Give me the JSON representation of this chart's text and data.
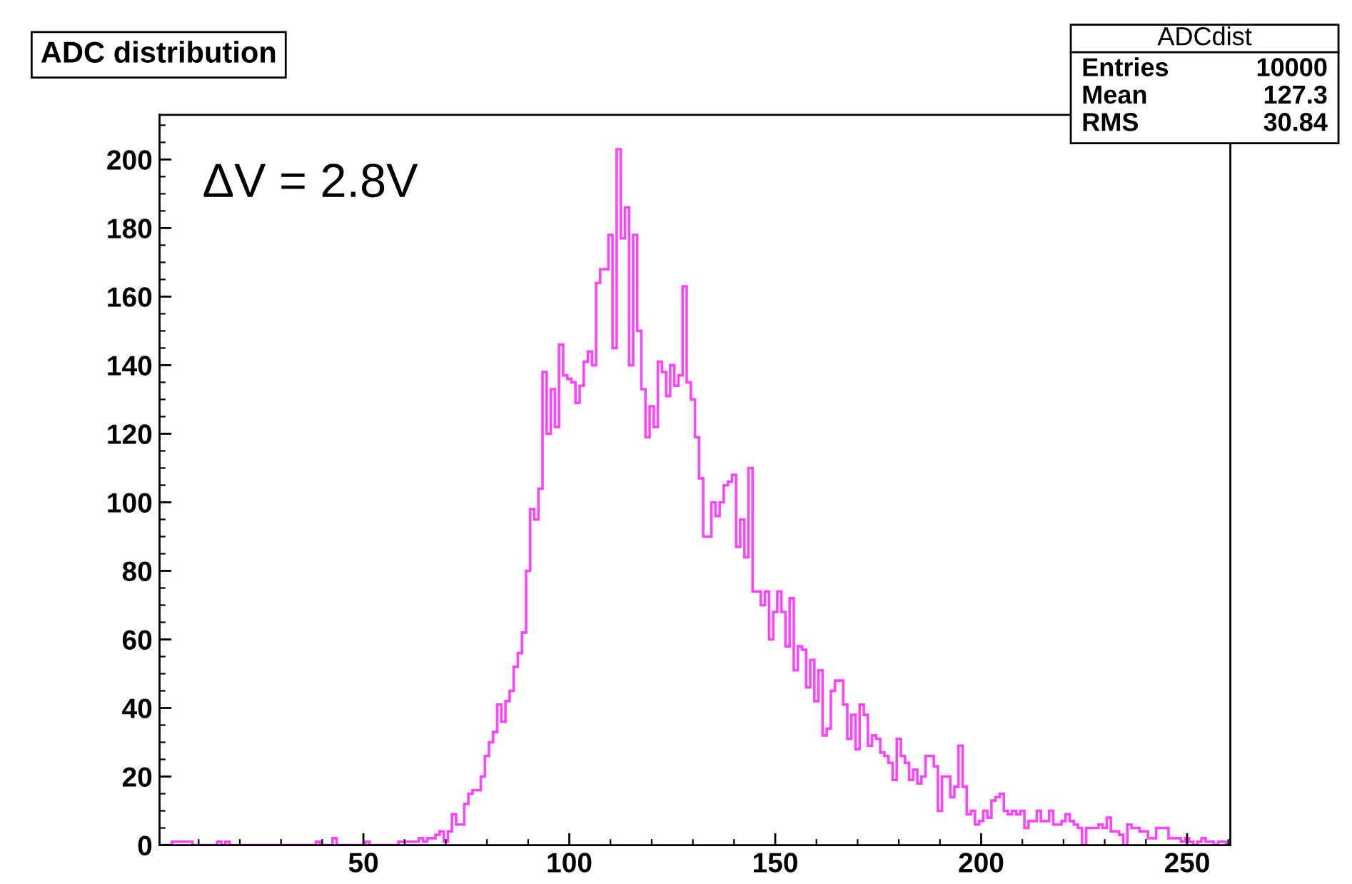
{
  "chart_data": {
    "type": "histogram",
    "title": "ADC distribution",
    "annotations": [
      "ΔV = 2.8V",
      "ADCdist",
      "Entries",
      "10000",
      "Mean",
      "127.3",
      "RMS",
      "30.84"
    ],
    "bins": [
      0.5,
      1.5,
      2.5,
      3.5,
      4.5,
      5.5,
      6.5,
      7.5,
      8.5,
      9.5,
      10.5,
      11.5,
      12.5,
      13.5,
      14.5,
      15.5,
      16.5,
      17.5,
      18.5,
      19.5,
      20.5,
      21.5,
      22.5,
      23.5,
      24.5,
      25.5,
      26.5,
      27.5,
      28.5,
      29.5,
      30.5,
      31.5,
      32.5,
      33.5,
      34.5,
      35.5,
      36.5,
      37.5,
      38.5,
      39.5,
      40.5,
      41.5,
      42.5,
      43.5,
      44.5,
      45.5,
      46.5,
      47.5,
      48.5,
      49.5,
      50.5,
      51.5,
      52.5,
      53.5,
      54.5,
      55.5,
      56.5,
      57.5,
      58.5,
      59.5,
      60.5,
      61.5,
      62.5,
      63.5,
      64.5,
      65.5,
      66.5,
      67.5,
      68.5,
      69.5,
      70.5,
      71.5,
      72.5,
      73.5,
      74.5,
      75.5,
      76.5,
      77.5,
      78.5,
      79.5,
      80.5,
      81.5,
      82.5,
      83.5,
      84.5,
      85.5,
      86.5,
      87.5,
      88.5,
      89.5,
      90.5,
      91.5,
      92.5,
      93.5,
      94.5,
      95.5,
      96.5,
      97.5,
      98.5,
      99.5,
      100.5,
      101.5,
      102.5,
      103.5,
      104.5,
      105.5,
      106.5,
      107.5,
      108.5,
      109.5,
      110.5,
      111.5,
      112.5,
      113.5,
      114.5,
      115.5,
      116.5,
      117.5,
      118.5,
      119.5,
      120.5,
      121.5,
      122.5,
      123.5,
      124.5,
      125.5,
      126.5,
      127.5,
      128.5,
      129.5,
      130.5,
      131.5,
      132.5,
      133.5,
      134.5,
      135.5,
      136.5,
      137.5,
      138.5,
      139.5,
      140.5,
      141.5,
      142.5,
      143.5,
      144.5,
      145.5,
      146.5,
      147.5,
      148.5,
      149.5,
      150.5,
      151.5,
      152.5,
      153.5,
      154.5,
      155.5,
      156.5,
      157.5,
      158.5,
      159.5,
      160.5,
      161.5,
      162.5,
      163.5,
      164.5,
      165.5,
      166.5,
      167.5,
      168.5,
      169.5,
      170.5,
      171.5,
      172.5,
      173.5,
      174.5,
      175.5,
      176.5,
      177.5,
      178.5,
      179.5,
      180.5,
      181.5,
      182.5,
      183.5,
      184.5,
      185.5,
      186.5,
      187.5,
      188.5,
      189.5,
      190.5,
      191.5,
      192.5,
      193.5,
      194.5,
      195.5,
      196.5,
      197.5,
      198.5,
      199.5,
      200.5,
      201.5,
      202.5,
      203.5,
      204.5,
      205.5,
      206.5,
      207.5,
      208.5,
      209.5,
      210.5,
      211.5,
      212.5,
      213.5,
      214.5,
      215.5,
      216.5,
      217.5,
      218.5,
      219.5,
      220.5,
      221.5,
      222.5,
      223.5,
      224.5,
      225.5,
      226.5,
      227.5,
      228.5,
      229.5,
      230.5,
      231.5,
      232.5,
      233.5,
      234.5,
      235.5,
      236.5,
      237.5,
      238.5,
      239.5,
      240.5,
      241.5,
      242.5,
      243.5,
      244.5,
      245.5,
      246.5,
      247.5,
      248.5,
      249.5,
      250.5,
      251.5,
      252.5,
      253.5,
      254.5,
      255.5,
      256.5,
      257.5,
      258.5,
      259.5,
      260.5
    ],
    "values": [
      0,
      0,
      0,
      1,
      1,
      1,
      1,
      1,
      0,
      0,
      0,
      0,
      0,
      0,
      1,
      0,
      1,
      0,
      0,
      0,
      0,
      0,
      0,
      0,
      0,
      0,
      0,
      0,
      0,
      0,
      0,
      0,
      0,
      0,
      0,
      0,
      0,
      0,
      1,
      0,
      0,
      0,
      2,
      0,
      0,
      0,
      0,
      0,
      0,
      0,
      1,
      0,
      0,
      0,
      0,
      0,
      0,
      0,
      1,
      1,
      1,
      1,
      1,
      2,
      1,
      2,
      2,
      3,
      4,
      1,
      4,
      9,
      6,
      6,
      12,
      15,
      16,
      16,
      20,
      26,
      30,
      33,
      41,
      36,
      42,
      45,
      52,
      56,
      62,
      80,
      98,
      95,
      104,
      138,
      120,
      133,
      122,
      146,
      137,
      136,
      135,
      129,
      134,
      141,
      144,
      140,
      164,
      168,
      168,
      178,
      145,
      203,
      177,
      186,
      140,
      178,
      150,
      133,
      119,
      128,
      122,
      141,
      138,
      131,
      140,
      134,
      137,
      163,
      135,
      130,
      119,
      107,
      90,
      90,
      100,
      96,
      100,
      105,
      106,
      108,
      87,
      95,
      84,
      110,
      74,
      74,
      70,
      74,
      60,
      68,
      74,
      68,
      58,
      72,
      51,
      58,
      57,
      46,
      54,
      42,
      51,
      32,
      34,
      45,
      48,
      48,
      41,
      31,
      38,
      28,
      41,
      38,
      29,
      32,
      31,
      27,
      26,
      24,
      19,
      31,
      26,
      24,
      19,
      22,
      18,
      20,
      26,
      26,
      23,
      10,
      20,
      20,
      14,
      17,
      29,
      17,
      9,
      10,
      6,
      7,
      10,
      8,
      13,
      14,
      15,
      10,
      9,
      10,
      9,
      10,
      5,
      7,
      7,
      10,
      7,
      7,
      10,
      6,
      6,
      7,
      9,
      7,
      6,
      5,
      0,
      5,
      5,
      5,
      6,
      5,
      8,
      4,
      4,
      3,
      0,
      6,
      5,
      5,
      4,
      4,
      2,
      2,
      5,
      5,
      5,
      2,
      2,
      2,
      1,
      2,
      1,
      0,
      1,
      2,
      1,
      1,
      0,
      1,
      1,
      0
    ],
    "color": "#ff44ff",
    "xlim": [
      0.5,
      260.5
    ],
    "xticks": [
      50,
      100,
      150,
      200,
      250
    ],
    "ylim": [
      0,
      213
    ],
    "yticks": [
      0,
      20,
      40,
      60,
      80,
      100,
      120,
      140,
      160,
      180,
      200
    ],
    "grid": false,
    "legend": false
  }
}
